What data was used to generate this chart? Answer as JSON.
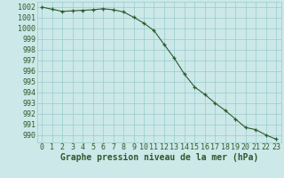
{
  "x": [
    0,
    1,
    2,
    3,
    4,
    5,
    6,
    7,
    8,
    9,
    10,
    11,
    12,
    13,
    14,
    15,
    16,
    17,
    18,
    19,
    20,
    21,
    22,
    23
  ],
  "y": [
    1002.0,
    1001.8,
    1001.6,
    1001.65,
    1001.7,
    1001.75,
    1001.85,
    1001.75,
    1001.55,
    1001.05,
    1000.5,
    999.8,
    998.5,
    997.2,
    995.7,
    994.5,
    993.8,
    993.0,
    992.3,
    991.5,
    990.7,
    990.5,
    990.0,
    989.6
  ],
  "title": "Graphe pression niveau de la mer (hPa)",
  "ylabel_values": [
    990,
    991,
    992,
    993,
    994,
    995,
    996,
    997,
    998,
    999,
    1000,
    1001,
    1002
  ],
  "ylim": [
    989.3,
    1002.5
  ],
  "xlim": [
    -0.5,
    23.5
  ],
  "bg_color": "#cce8e8",
  "line_color": "#2d5a2d",
  "grid_color": "#99cccc",
  "title_color": "#2d5a2d",
  "tick_color": "#2d5a2d",
  "title_fontsize": 7.0,
  "tick_fontsize": 6.0
}
